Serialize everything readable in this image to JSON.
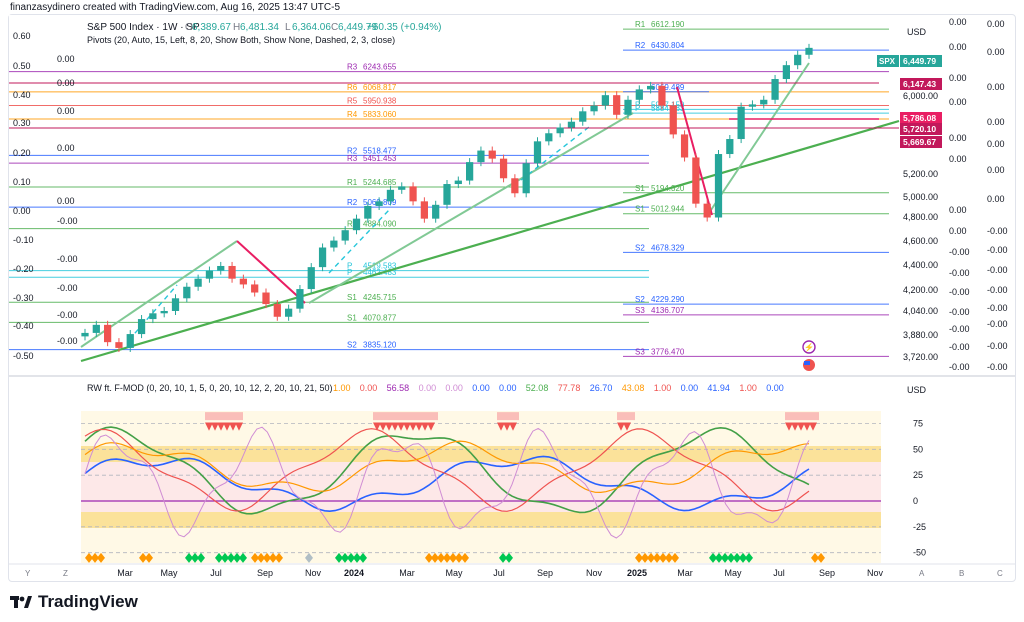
{
  "caption": "finanzasydinero created with TradingView.com, Aug 16, 2025 13:47 UTC-5",
  "header": {
    "symbol": "S&P 500 Index · 1W · SP",
    "ohlc": [
      {
        "k": "O",
        "v": "6,389.67"
      },
      {
        "k": "H",
        "v": "6,481.34"
      },
      {
        "k": "L",
        "v": "6,364.06"
      },
      {
        "k": "C",
        "v": "6,449.79"
      }
    ],
    "change": "+60.35 (+0.94%)",
    "pivots": "Pivots (20, Auto, 15, Left, 8, 20, Show Both, Show None, Dashed, 2, 3, close)"
  },
  "currency": "USD",
  "colors": {
    "up": "#26a69a",
    "down": "#ef5350",
    "trend_light": "#81c995",
    "trend_dark": "#4caf50",
    "zigzag_red": "#e91e63",
    "pivot_orange": "#ff9800",
    "pivot_purple": "#9c27b0",
    "pivot_blue": "#2962ff",
    "band_yellow": "#fbe29a",
    "band_pink": "#fce4e4",
    "osc_blue": "#2962ff",
    "osc_green": "#43a047",
    "osc_red": "#ef5350",
    "osc_orange": "#ff9800",
    "osc_pink": "#d08dd4"
  },
  "left_scale_a": [
    "0.60",
    "0.50",
    "0.40",
    "0.30",
    "0.20",
    "0.10",
    "0.00",
    "-0.10",
    "-0.20",
    "-0.30",
    "-0.40",
    "-0.50"
  ],
  "left_scale_b": [
    "0.00",
    "0.00",
    "0.00",
    "0.00",
    "0.00",
    "-0.00",
    "-0.00",
    "-0.00",
    "-0.00",
    "-0.00"
  ],
  "price_axis": [
    "6,000.00",
    "5,200.00",
    "5,000.00",
    "4,800.00",
    "4,600.00",
    "4,400.00",
    "4,200.00",
    "4,040.00",
    "3,880.00",
    "3,720.00"
  ],
  "price_tags": [
    {
      "label": "SPX",
      "value": "6,449.79",
      "color": "#26a69a"
    },
    {
      "value": "6,147.43",
      "color": "#c2185b"
    },
    {
      "value": "5,786.08",
      "color": "#e91e63"
    },
    {
      "value": "5,720.10",
      "color": "#c2185b"
    },
    {
      "value": "5,669.67",
      "color": "#c2185b"
    }
  ],
  "right_scale_a": [
    "0.00",
    "0.00",
    "0.00",
    "0.00",
    "0.00",
    "0.00",
    "0.00",
    "0.00",
    "-0.00",
    "-0.00",
    "-0.00",
    "-0.00",
    "-0.00",
    "-0.00",
    "-0.00",
    "-0.00",
    "-0.00",
    "-0.00"
  ],
  "right_scale_b": [
    "0.00",
    "0.00",
    "0.00",
    "0.00",
    "0.00",
    "0.00",
    "0.00",
    "-0.00",
    "-0.00",
    "-0.00",
    "-0.00",
    "-0.00",
    "-0.00",
    "-0.00",
    "-0.00",
    "-0.00",
    "-0.00"
  ],
  "pivot_lines": [
    {
      "tag": "R1",
      "value": "6612.190",
      "color": "#4caf50"
    },
    {
      "tag": "R2",
      "value": "6430.804",
      "color": "#2962ff"
    },
    {
      "tag": "R3",
      "value": "6243.655",
      "color": "#9c27b0"
    },
    {
      "tag": "R6",
      "value": "6068.817",
      "color": "#ff9800"
    },
    {
      "tag": "R5",
      "value": "5950.938",
      "color": "#ef5350"
    },
    {
      "tag": "R4",
      "value": "5833.060",
      "color": "#ff9800"
    },
    {
      "tag": "R2",
      "value": "5518.477",
      "color": "#2962ff"
    },
    {
      "tag": "R3",
      "value": "5451.453",
      "color": "#9c27b0"
    },
    {
      "tag": "R1",
      "value": "5244.685",
      "color": "#4caf50"
    },
    {
      "tag": "R2",
      "value": "5069.809",
      "color": "#2962ff"
    },
    {
      "tag": "R1",
      "value": "4884.090",
      "color": "#4caf50"
    },
    {
      "tag": "P",
      "value": "4519.583",
      "color": "#26c6da"
    },
    {
      "tag": "P",
      "value": "4462.483",
      "color": "#26c6da"
    },
    {
      "tag": "S1",
      "value": "4245.715",
      "color": "#4caf50"
    },
    {
      "tag": "S1",
      "value": "4070.877",
      "color": "#4caf50"
    },
    {
      "tag": "S2",
      "value": "3835.120",
      "color": "#2962ff"
    },
    {
      "tag": "P",
      "value": "5917.159",
      "color": "#26c6da"
    },
    {
      "tag": "P",
      "value": "5884.563",
      "color": "#26c6da"
    },
    {
      "tag": "S1",
      "value": "5194.320",
      "color": "#4caf50"
    },
    {
      "tag": "S1",
      "value": "5012.944",
      "color": "#4caf50"
    },
    {
      "tag": "S2",
      "value": "4678.329",
      "color": "#2962ff"
    },
    {
      "tag": "S2",
      "value": "4229.290",
      "color": "#2962ff"
    },
    {
      "tag": "S3",
      "value": "4136.707",
      "color": "#9c27b0"
    },
    {
      "tag": "S3",
      "value": "3776.470",
      "color": "#9c27b0"
    },
    {
      "tag": "",
      "value": "6069.489",
      "color": "#2962ff"
    }
  ],
  "oscillator": {
    "title": "RW ft. F-MOD (0, 20, 10, 1, 5, 0, 20, 10, 12, 2, 20, 10, 21, 50)",
    "values": [
      {
        "v": "1.00",
        "color": "#ff9800"
      },
      {
        "v": "0.00",
        "color": "#ef5350"
      },
      {
        "v": "56.58",
        "color": "#9c27b0"
      },
      {
        "v": "0.00",
        "color": "#d08dd4"
      },
      {
        "v": "0.00",
        "color": "#d08dd4"
      },
      {
        "v": "0.00",
        "color": "#2962ff"
      },
      {
        "v": "0.00",
        "color": "#2962ff"
      },
      {
        "v": "52.08",
        "color": "#4caf50"
      },
      {
        "v": "77.78",
        "color": "#ef5350"
      },
      {
        "v": "26.70",
        "color": "#2962ff"
      },
      {
        "v": "43.08",
        "color": "#ff9800"
      },
      {
        "v": "1.00",
        "color": "#ef5350"
      },
      {
        "v": "0.00",
        "color": "#2962ff"
      },
      {
        "v": "41.94",
        "color": "#2962ff"
      },
      {
        "v": "1.00",
        "color": "#ef5350"
      },
      {
        "v": "0.00",
        "color": "#2962ff"
      }
    ],
    "axis": [
      "75",
      "50",
      "25",
      "0",
      "-25",
      "-50"
    ],
    "currency": "USD"
  },
  "time_axis": [
    "Mar",
    "May",
    "Jul",
    "Sep",
    "Nov",
    "2024",
    "Mar",
    "May",
    "Jul",
    "Sep",
    "Nov",
    "2025",
    "Mar",
    "May",
    "Jul",
    "Sep",
    "Nov"
  ],
  "axis_corners": {
    "left": [
      "Y",
      "Z"
    ],
    "right": [
      "A",
      "B",
      "C"
    ]
  },
  "logo": "TradingView",
  "chart_data": {
    "type": "candlestick",
    "title": "S&P 500 Index · 1W · SP",
    "ylim": [
      3650,
      6700
    ],
    "x": "weekly, Jan 2023 – Aug 2025",
    "close_path": [
      3980,
      4050,
      3900,
      3850,
      3970,
      4100,
      4150,
      4170,
      4280,
      4380,
      4450,
      4520,
      4560,
      4450,
      4400,
      4330,
      4230,
      4120,
      4190,
      4360,
      4550,
      4720,
      4780,
      4870,
      4970,
      5080,
      5120,
      5220,
      5250,
      5120,
      4970,
      5090,
      5270,
      5300,
      5460,
      5560,
      5490,
      5320,
      5190,
      5450,
      5640,
      5710,
      5760,
      5810,
      5900,
      5950,
      6040,
      5870,
      6000,
      6090,
      6120,
      5950,
      5700,
      5500,
      5100,
      4980,
      5530,
      5660,
      5940,
      5960,
      6000,
      6180,
      6300,
      6390,
      6450
    ],
    "oscillator_ylim": [
      -60,
      90
    ],
    "oscillator_levels": [
      75,
      50,
      25,
      0,
      -25,
      -50
    ]
  }
}
